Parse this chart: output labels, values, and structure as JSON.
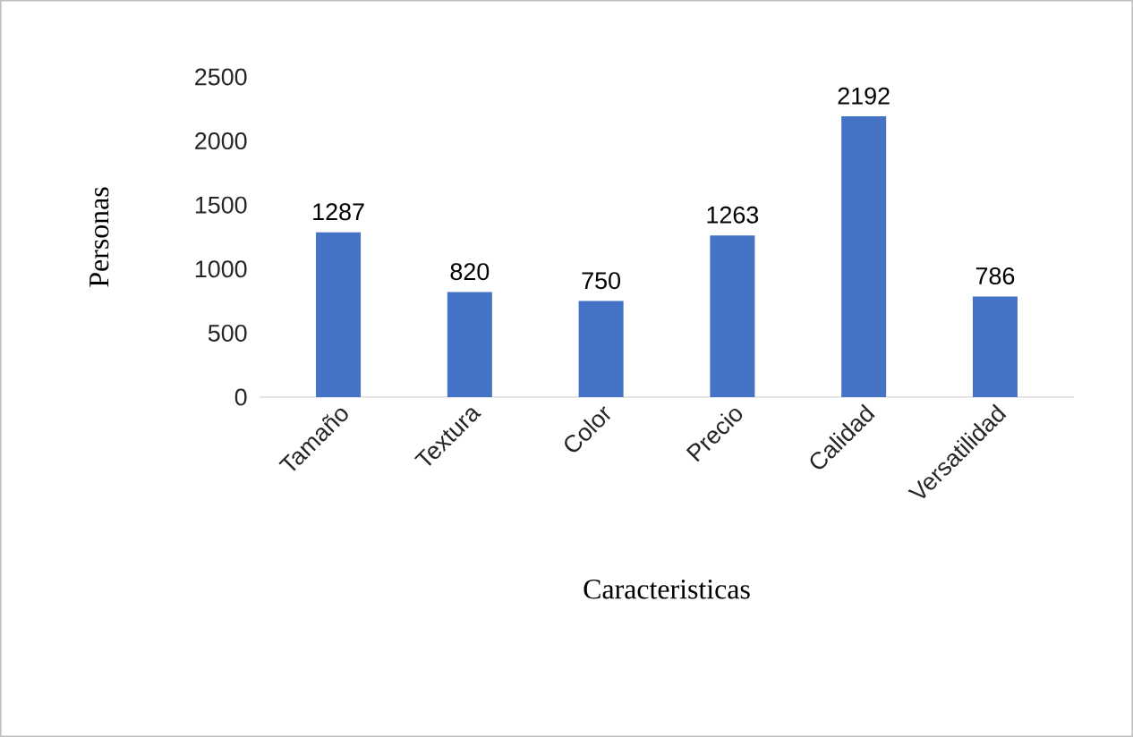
{
  "chart_data": {
    "type": "bar",
    "xlabel": "Caracteristicas",
    "ylabel": "Personas",
    "categories": [
      "Tamaño",
      "Textura",
      "Color",
      "Precio",
      "Calidad",
      "Versatilidad"
    ],
    "values": [
      1287,
      820,
      750,
      1263,
      2192,
      786
    ],
    "color": "#4472c4",
    "ylim": [
      0,
      2500
    ],
    "yticks": [
      0,
      500,
      1000,
      1500,
      2000,
      2500
    ],
    "data_labels": true
  }
}
